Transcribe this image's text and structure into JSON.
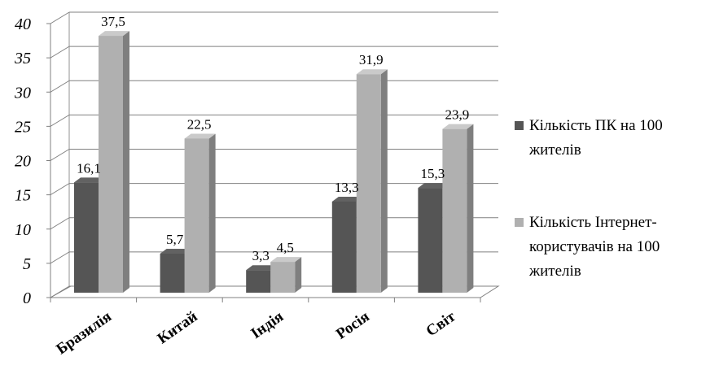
{
  "chart_data": {
    "type": "bar",
    "three_d": true,
    "categories": [
      "Бразилія",
      "Китай",
      "Індія",
      "Росія",
      "Світ"
    ],
    "series": [
      {
        "name_lines": [
          "Кількість ПК на 100",
          "жителів"
        ],
        "color": "#555555",
        "values": [
          16.1,
          5.7,
          3.3,
          13.3,
          15.3
        ],
        "labels": [
          "16,1",
          "5,7",
          "3,3",
          "13,3",
          "15,3"
        ]
      },
      {
        "name_lines": [
          "Кількість Інтернет-",
          "користувачів на 100",
          "жителів"
        ],
        "color": "#b0b0b0",
        "values": [
          37.5,
          22.5,
          4.5,
          31.9,
          23.9
        ],
        "labels": [
          "37,5",
          "22,5",
          "4,5",
          "31,9",
          "23,9"
        ]
      }
    ],
    "ylim": [
      0,
      40
    ],
    "yticks": [
      0,
      5,
      10,
      15,
      20,
      25,
      30,
      35,
      40
    ],
    "grid": true,
    "legend": "right"
  }
}
